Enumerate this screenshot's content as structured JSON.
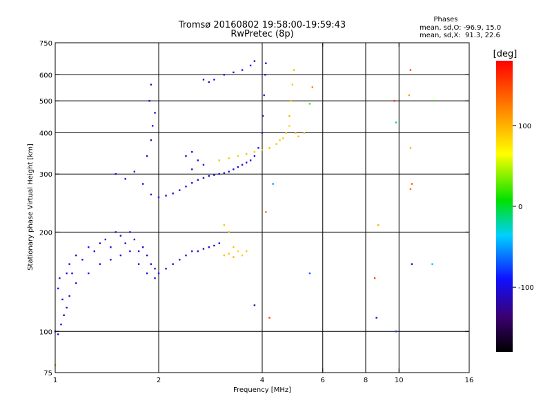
{
  "chart_data": {
    "type": "scatter",
    "title": "Tromsø 20160802 19:58:00-19:59:43",
    "subtitle": "RwPretec (8p)",
    "stats": {
      "header": "Phases",
      "line1": "mean, sd,O: -96.9, 15.0",
      "line2": "mean, sd,X:  91.3, 22.6"
    },
    "xlabel": "Frequency [MHz]",
    "ylabel": "Stationary phase Virtual Height [km]",
    "x_scale": "log",
    "y_scale": "log",
    "xlim": [
      1,
      16
    ],
    "ylim": [
      75,
      750
    ],
    "x_ticks": [
      1,
      2,
      4,
      6,
      8,
      10,
      16
    ],
    "x_tick_labels": [
      "1",
      "2",
      "4",
      "6",
      "8",
      "10",
      "16"
    ],
    "x_grid": [
      2,
      4,
      6,
      8,
      10
    ],
    "y_ticks": [
      75,
      100,
      200,
      300,
      400,
      500,
      600,
      750
    ],
    "y_tick_labels": [
      "75",
      "100",
      "200",
      "300",
      "400",
      "500",
      "600",
      "750"
    ],
    "y_grid": [
      100,
      200,
      300,
      400,
      500,
      600
    ],
    "grid": true,
    "colorbar": {
      "label": "[deg]",
      "range": [
        -180,
        180
      ],
      "ticks": [
        100,
        0,
        -100
      ],
      "tick_labels": [
        "100",
        "0",
        "-100"
      ]
    },
    "points": [
      [
        1.02,
        135,
        -100
      ],
      [
        1.05,
        125,
        -110
      ],
      [
        1.03,
        145,
        -95
      ],
      [
        1.08,
        150,
        -100
      ],
      [
        1.1,
        160,
        -100
      ],
      [
        1.12,
        150,
        -105
      ],
      [
        1.15,
        170,
        -100
      ],
      [
        1.2,
        165,
        -95
      ],
      [
        1.25,
        180,
        -100
      ],
      [
        1.3,
        175,
        -110
      ],
      [
        1.35,
        185,
        -100
      ],
      [
        1.4,
        190,
        -95
      ],
      [
        1.45,
        180,
        -100
      ],
      [
        1.5,
        200,
        -105
      ],
      [
        1.55,
        195,
        -100
      ],
      [
        1.6,
        185,
        -100
      ],
      [
        1.65,
        200,
        -95
      ],
      [
        1.7,
        190,
        -110
      ],
      [
        1.75,
        175,
        -100
      ],
      [
        1.8,
        180,
        -100
      ],
      [
        1.85,
        170,
        -105
      ],
      [
        1.9,
        160,
        -100
      ],
      [
        1.95,
        155,
        -95
      ],
      [
        2.0,
        150,
        -100
      ],
      [
        2.1,
        155,
        -100
      ],
      [
        2.2,
        160,
        -105
      ],
      [
        2.3,
        165,
        -100
      ],
      [
        2.4,
        170,
        -100
      ],
      [
        2.5,
        175,
        -95
      ],
      [
        2.6,
        175,
        -100
      ],
      [
        2.7,
        178,
        -110
      ],
      [
        2.8,
        180,
        -100
      ],
      [
        2.9,
        182,
        -100
      ],
      [
        3.0,
        185,
        -100
      ],
      [
        1.04,
        105,
        -95
      ],
      [
        1.06,
        112,
        -100
      ],
      [
        1.08,
        118,
        -100
      ],
      [
        1.1,
        128,
        -105
      ],
      [
        1.0,
        100,
        -100
      ],
      [
        1.02,
        98,
        -110
      ],
      [
        1.15,
        140,
        -100
      ],
      [
        1.25,
        150,
        -100
      ],
      [
        1.35,
        160,
        -95
      ],
      [
        1.45,
        165,
        -100
      ],
      [
        1.55,
        170,
        -100
      ],
      [
        1.65,
        175,
        -105
      ],
      [
        1.75,
        160,
        -100
      ],
      [
        1.85,
        150,
        -100
      ],
      [
        1.95,
        145,
        -95
      ],
      [
        3.1,
        170,
        95
      ],
      [
        3.2,
        172,
        90
      ],
      [
        3.3,
        168,
        100
      ],
      [
        3.4,
        175,
        85
      ],
      [
        3.5,
        170,
        90
      ],
      [
        3.6,
        175,
        95
      ],
      [
        3.3,
        180,
        95
      ],
      [
        3.1,
        210,
        90
      ],
      [
        3.2,
        200,
        100
      ],
      [
        1.5,
        300,
        -100
      ],
      [
        1.6,
        290,
        -95
      ],
      [
        1.7,
        305,
        -100
      ],
      [
        1.8,
        280,
        -100
      ],
      [
        1.9,
        260,
        -105
      ],
      [
        2.0,
        255,
        -100
      ],
      [
        2.1,
        258,
        -100
      ],
      [
        2.2,
        262,
        -110
      ],
      [
        2.3,
        268,
        -100
      ],
      [
        2.4,
        275,
        -100
      ],
      [
        2.5,
        282,
        -95
      ],
      [
        2.6,
        288,
        -100
      ],
      [
        2.7,
        292,
        -100
      ],
      [
        2.8,
        296,
        -105
      ],
      [
        2.9,
        298,
        -100
      ],
      [
        3.0,
        300,
        -100
      ],
      [
        3.1,
        302,
        -100
      ],
      [
        3.2,
        305,
        -110
      ],
      [
        3.3,
        310,
        -100
      ],
      [
        3.4,
        315,
        -100
      ],
      [
        3.5,
        320,
        -100
      ],
      [
        3.6,
        325,
        -105
      ],
      [
        3.7,
        330,
        -100
      ],
      [
        3.8,
        340,
        -100
      ],
      [
        3.9,
        360,
        -100
      ],
      [
        4.0,
        400,
        -100
      ],
      [
        4.02,
        450,
        -100
      ],
      [
        4.05,
        520,
        -105
      ],
      [
        4.08,
        600,
        -100
      ],
      [
        4.1,
        650,
        -100
      ],
      [
        1.85,
        340,
        -100
      ],
      [
        1.9,
        380,
        -100
      ],
      [
        1.92,
        420,
        -95
      ],
      [
        1.95,
        460,
        -100
      ],
      [
        1.88,
        500,
        -100
      ],
      [
        1.9,
        560,
        -100
      ],
      [
        2.4,
        340,
        -100
      ],
      [
        2.5,
        350,
        -95
      ],
      [
        2.6,
        330,
        -100
      ],
      [
        2.7,
        320,
        -100
      ],
      [
        2.5,
        310,
        -100
      ],
      [
        3.0,
        330,
        95
      ],
      [
        3.2,
        335,
        90
      ],
      [
        3.4,
        340,
        85
      ],
      [
        3.6,
        345,
        95
      ],
      [
        3.8,
        350,
        90
      ],
      [
        4.0,
        355,
        95
      ],
      [
        4.2,
        360,
        100
      ],
      [
        4.4,
        370,
        95
      ],
      [
        4.6,
        385,
        90
      ],
      [
        4.7,
        400,
        95
      ],
      [
        4.8,
        450,
        100
      ],
      [
        4.85,
        500,
        95
      ],
      [
        4.9,
        560,
        90
      ],
      [
        4.95,
        620,
        95
      ],
      [
        4.5,
        380,
        90
      ],
      [
        4.8,
        420,
        85
      ],
      [
        5.0,
        400,
        100
      ],
      [
        5.1,
        390,
        95
      ],
      [
        2.7,
        580,
        -100
      ],
      [
        2.8,
        570,
        -100
      ],
      [
        2.9,
        580,
        -95
      ],
      [
        3.1,
        600,
        -100
      ],
      [
        3.3,
        610,
        -100
      ],
      [
        3.5,
        620,
        -105
      ],
      [
        3.7,
        640,
        -100
      ],
      [
        3.8,
        660,
        -100
      ],
      [
        9.7,
        500,
        160
      ],
      [
        9.8,
        430,
        -20
      ],
      [
        10.7,
        520,
        110
      ],
      [
        10.8,
        620,
        150
      ],
      [
        10.8,
        360,
        100
      ],
      [
        10.9,
        280,
        140
      ],
      [
        10.8,
        270,
        130
      ],
      [
        12.5,
        500,
        20
      ],
      [
        10.9,
        160,
        -130
      ],
      [
        12.5,
        160,
        -40
      ],
      [
        8.6,
        110,
        -110
      ],
      [
        8.5,
        145,
        150
      ],
      [
        9.8,
        100,
        -80
      ],
      [
        4.2,
        110,
        150
      ],
      [
        4.3,
        280,
        -50
      ],
      [
        4.1,
        230,
        130
      ],
      [
        5.3,
        400,
        90
      ],
      [
        5.5,
        490,
        20
      ],
      [
        5.6,
        550,
        120
      ],
      [
        8.7,
        210,
        100
      ],
      [
        1.0,
        79,
        95
      ],
      [
        3.8,
        120,
        -140
      ],
      [
        5.5,
        150,
        -70
      ]
    ]
  }
}
